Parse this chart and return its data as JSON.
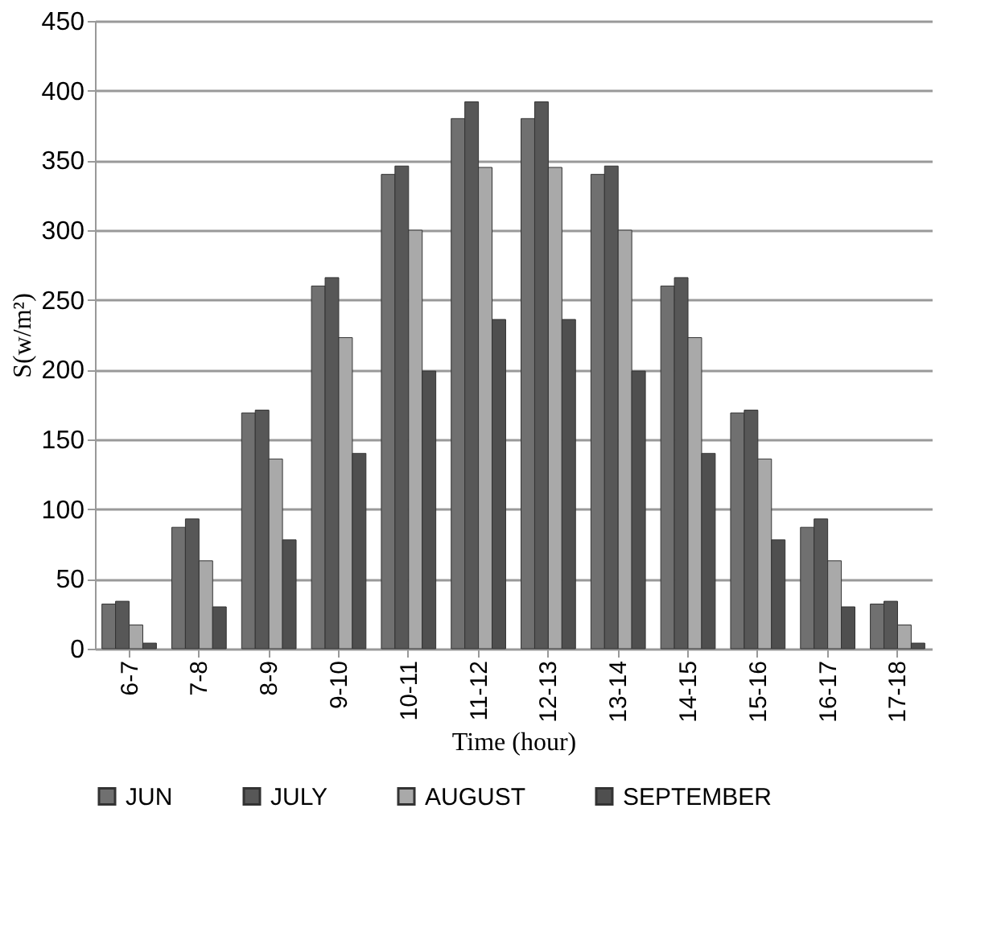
{
  "chart_data": {
    "type": "bar",
    "xlabel": "Time (hour)",
    "ylabel": "S(w/m²)",
    "categories": [
      "6-7",
      "7-8",
      "8-9",
      "9-10",
      "10-11",
      "11-12",
      "12-13",
      "13-14",
      "14-15",
      "15-16",
      "16-17",
      "17-18"
    ],
    "series": [
      {
        "name": "JUN",
        "color": "#707070",
        "values": [
          32,
          87,
          169,
          260,
          340,
          380,
          380,
          340,
          260,
          169,
          87,
          32
        ]
      },
      {
        "name": "JULY",
        "color": "#575757",
        "values": [
          34,
          93,
          171,
          266,
          346,
          392,
          392,
          346,
          266,
          171,
          93,
          34
        ]
      },
      {
        "name": "AUGUST",
        "color": "#a9a9a9",
        "values": [
          17,
          63,
          136,
          223,
          300,
          345,
          345,
          300,
          223,
          136,
          63,
          17
        ]
      },
      {
        "name": "SEPTEMBER",
        "color": "#4f4f4f",
        "values": [
          4,
          30,
          78,
          140,
          199,
          236,
          236,
          199,
          140,
          78,
          30,
          4
        ]
      }
    ],
    "ylim": [
      0,
      450
    ],
    "yticks": [
      0,
      50,
      100,
      150,
      200,
      250,
      300,
      350,
      400,
      450
    ],
    "grid": "y",
    "legend": "bottom"
  }
}
